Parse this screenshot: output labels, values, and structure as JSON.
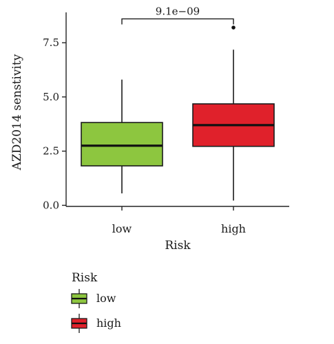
{
  "chart_data": {
    "type": "box",
    "title": "",
    "xlabel": "Risk",
    "ylabel": "AZD2014 senstivity",
    "ylim": [
      -0.05,
      8.9
    ],
    "yticks": [
      0.0,
      2.5,
      5.0,
      7.5
    ],
    "ytick_labels": [
      "0.0",
      "2.5",
      "5.0",
      "7.5"
    ],
    "categories": [
      "low",
      "high"
    ],
    "boxes": [
      {
        "name": "low",
        "whisker_low": 0.55,
        "q1": 1.82,
        "median": 2.75,
        "q3": 3.82,
        "whisker_high": 5.8,
        "outliers": [],
        "color": "#8dc63f"
      },
      {
        "name": "high",
        "whisker_low": 0.22,
        "q1": 2.72,
        "median": 3.7,
        "q3": 4.68,
        "whisker_high": 7.18,
        "outliers": [
          8.2
        ],
        "color": "#e0212b"
      }
    ],
    "annotation": {
      "text": "9.1e−09",
      "y": 8.6,
      "between": [
        "low",
        "high"
      ]
    },
    "grid": false,
    "legend": {
      "title": "Risk",
      "position": "bottom-left",
      "entries": [
        "low",
        "high"
      ]
    }
  }
}
